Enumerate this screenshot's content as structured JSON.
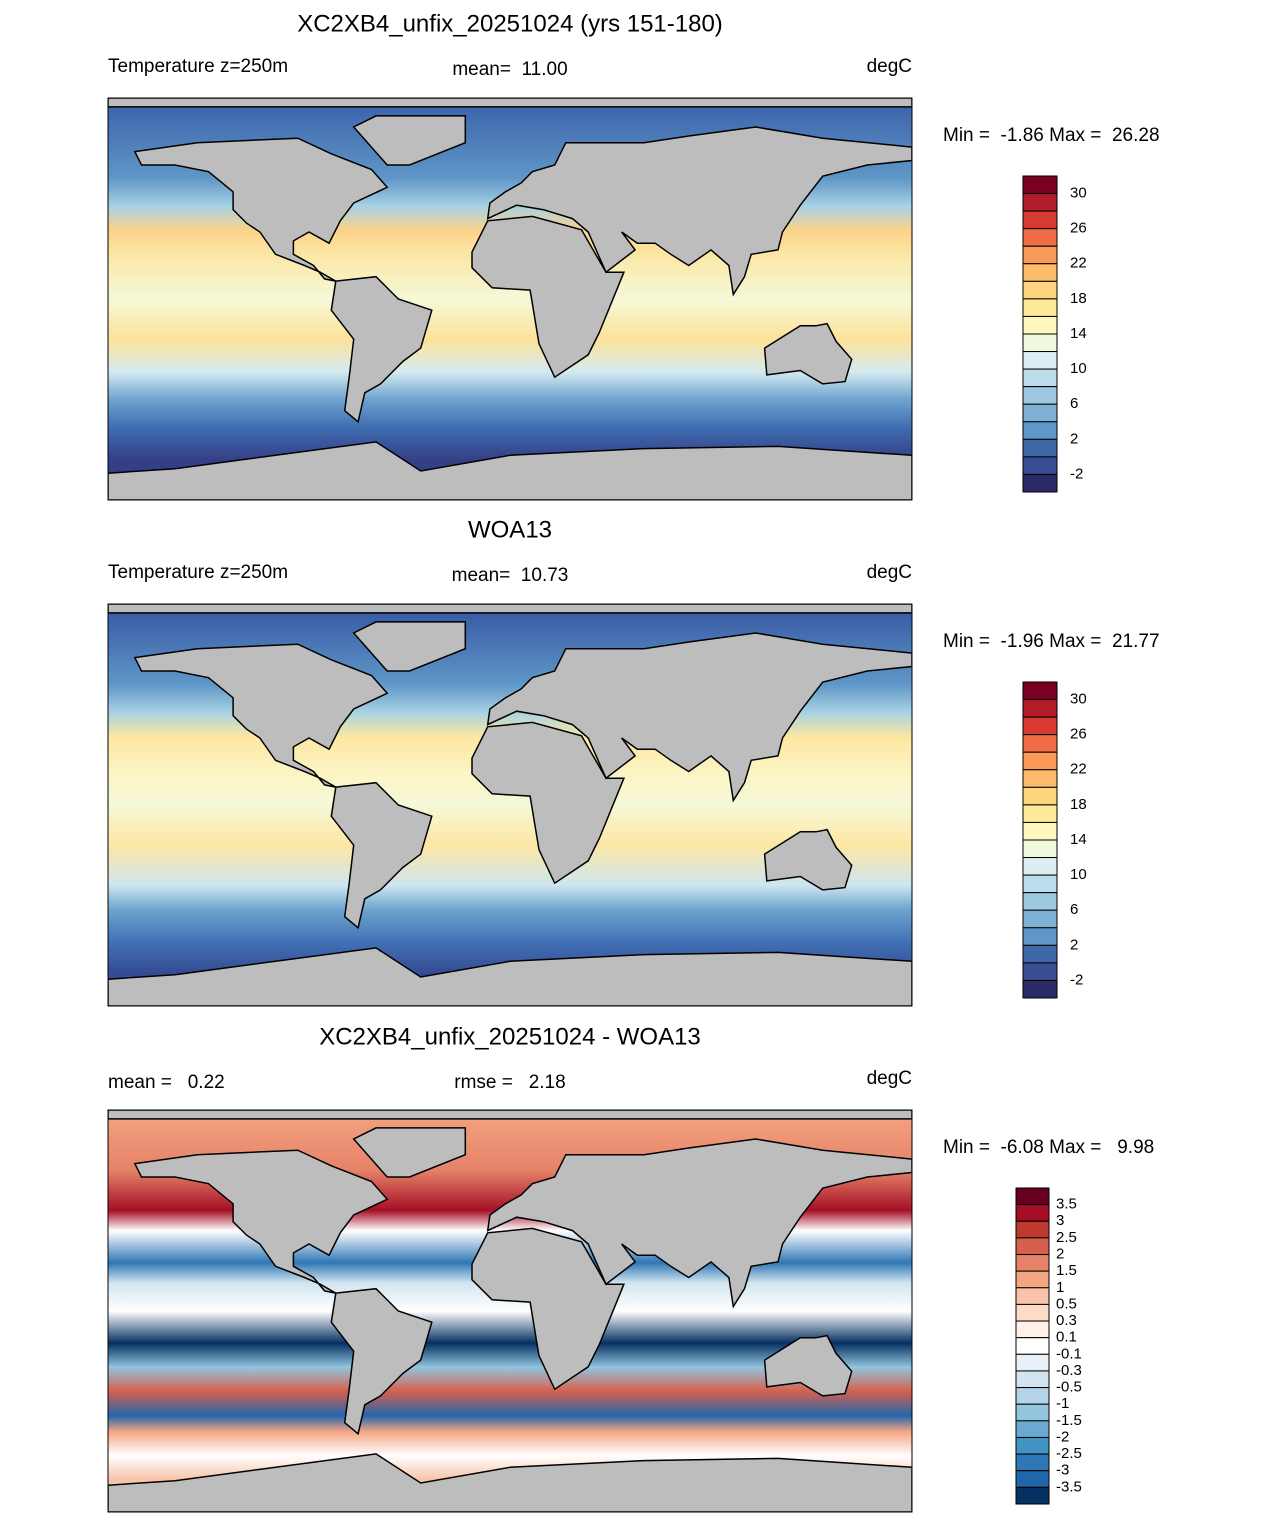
{
  "panels": [
    {
      "title": "XC2XB4_unfix_20251024 (yrs 151-180)",
      "left_label": "Temperature z=250m",
      "center_label": "mean=  11.00",
      "right_label": "degC",
      "range_label": "Min =  -1.86 Max =  26.28",
      "colorbar": {
        "labels": [
          "30",
          "26",
          "22",
          "18",
          "14",
          "10",
          "6",
          "2",
          "-2"
        ]
      }
    },
    {
      "title": "WOA13",
      "left_label": "Temperature z=250m",
      "center_label": "mean=  10.73",
      "right_label": "degC",
      "range_label": "Min =  -1.96 Max =  21.77",
      "colorbar": {
        "labels": [
          "30",
          "26",
          "22",
          "18",
          "14",
          "10",
          "6",
          "2",
          "-2"
        ]
      }
    },
    {
      "title": "XC2XB4_unfix_20251024 - WOA13",
      "left_label": "mean =   0.22",
      "center_label": "rmse =   2.18",
      "right_label": "degC",
      "range_label": "Min =  -6.08 Max =   9.98",
      "colorbar": {
        "labels": [
          "3.5",
          "3",
          "2.5",
          "2",
          "1.5",
          "1",
          "0.5",
          "0.3",
          "0.1",
          "-0.1",
          "-0.3",
          "-0.5",
          "-1",
          "-1.5",
          "-2",
          "-2.5",
          "-3",
          "-3.5"
        ]
      }
    }
  ]
}
